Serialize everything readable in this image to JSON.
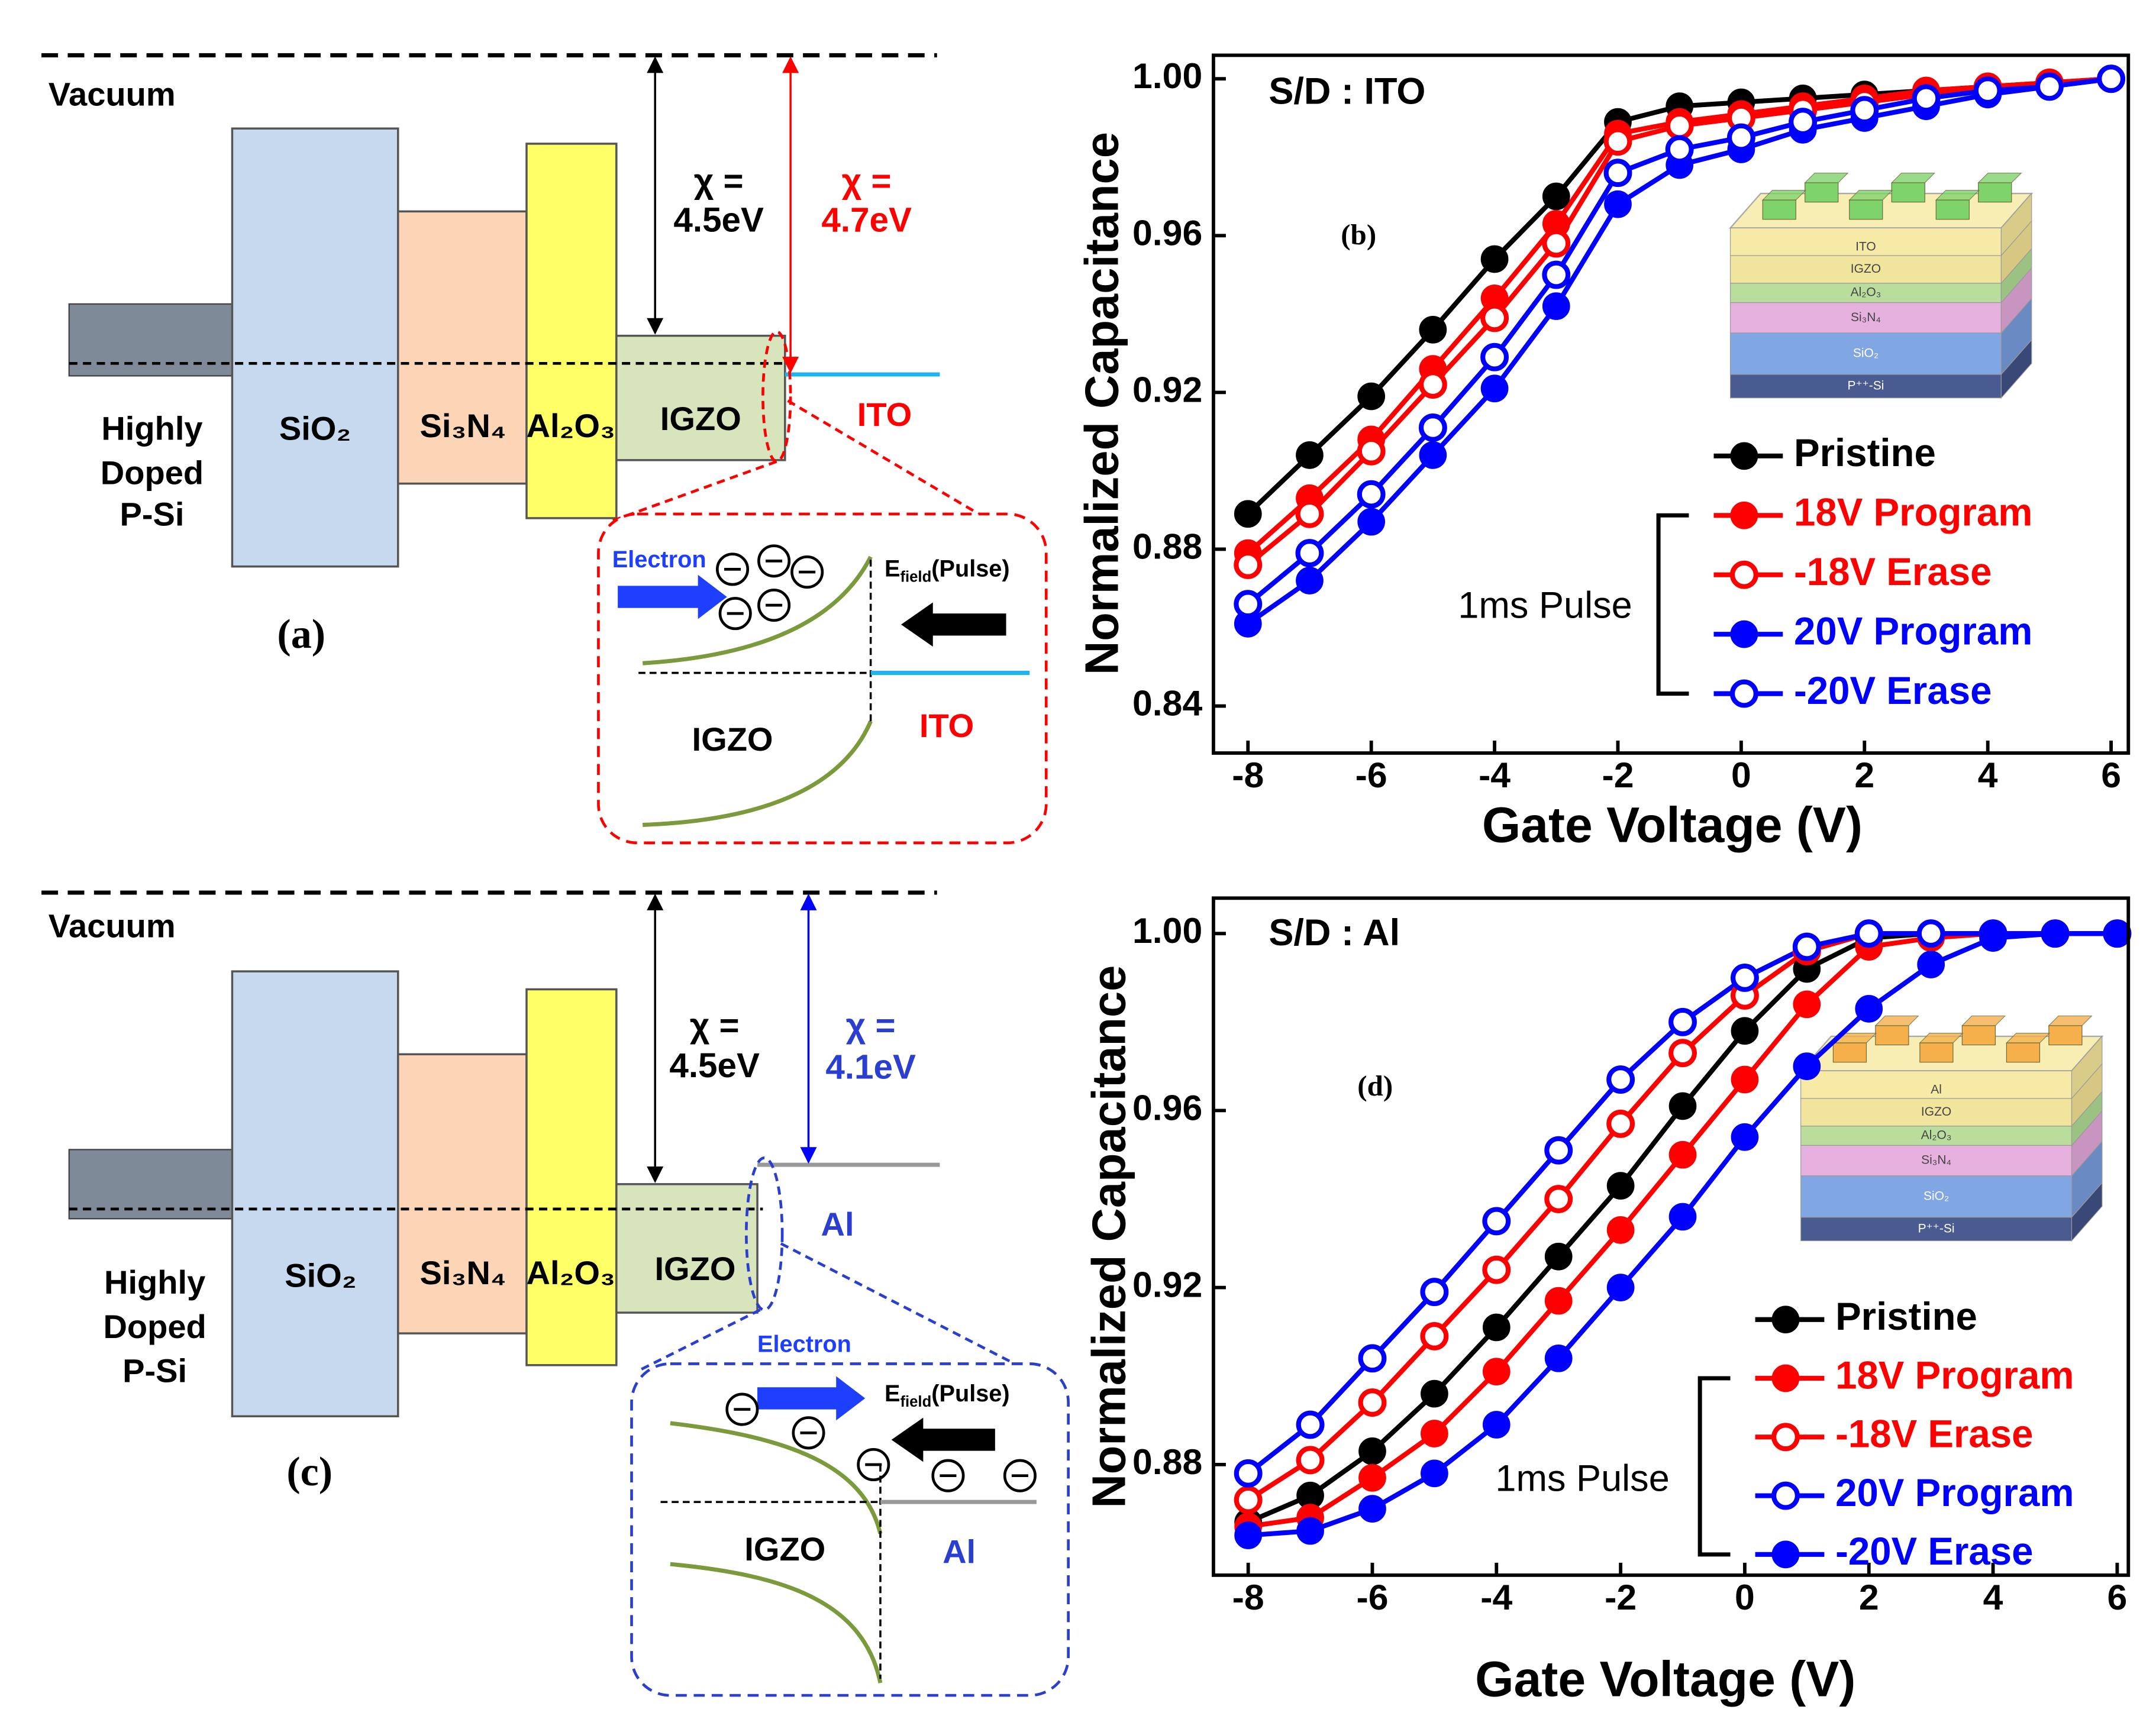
{
  "chart_data": [
    {
      "type": "line",
      "annotation": "S/D : ITO",
      "panel_label": "(b)",
      "x_label": "Gate Voltage (V)",
      "y_label": "Normalized Capacitance",
      "x": [
        -8,
        -7,
        -6,
        -5,
        -4,
        -3,
        -2,
        -1,
        0,
        1,
        2,
        3,
        4,
        5,
        6
      ],
      "series": [
        {
          "name": "Pristine",
          "color": "#000000",
          "marker": "filled",
          "values": [
            0.889,
            0.904,
            0.919,
            0.936,
            0.954,
            0.97,
            0.989,
            0.993,
            0.994,
            0.995,
            0.996,
            0.997,
            0.998,
            0.999,
            1.0
          ]
        },
        {
          "name": "18V Program",
          "color": "#ff0000",
          "marker": "filled",
          "values": [
            0.879,
            0.893,
            0.908,
            0.926,
            0.944,
            0.963,
            0.986,
            0.989,
            0.991,
            0.993,
            0.995,
            0.997,
            0.998,
            0.999,
            1.0
          ]
        },
        {
          "name": "-18V Erase",
          "color": "#ff0000",
          "marker": "open",
          "values": [
            0.876,
            0.889,
            0.905,
            0.922,
            0.939,
            0.958,
            0.984,
            0.988,
            0.99,
            0.992,
            0.994,
            0.996,
            0.998,
            0.999,
            1.0
          ]
        },
        {
          "name": "20V Program",
          "color": "#0000ff",
          "marker": "filled",
          "values": [
            0.861,
            0.872,
            0.887,
            0.904,
            0.921,
            0.942,
            0.968,
            0.978,
            0.982,
            0.987,
            0.99,
            0.993,
            0.996,
            0.998,
            1.0
          ]
        },
        {
          "name": "-20V Erase",
          "color": "#0000ff",
          "marker": "open",
          "values": [
            0.866,
            0.879,
            0.894,
            0.911,
            0.929,
            0.95,
            0.976,
            0.982,
            0.985,
            0.989,
            0.992,
            0.995,
            0.997,
            0.998,
            1.0
          ]
        }
      ],
      "legend_group_label": "1ms Pulse",
      "inset_layers": [
        "ITO",
        "IGZO",
        "Al₂O₃",
        "Si₃N₄",
        "SiO₂",
        "P⁺⁺-Si"
      ],
      "inset_electrode_color": "#7fd36b",
      "xlim": [
        -8.56,
        6.28
      ],
      "xticks": [
        -8,
        -6,
        -4,
        -2,
        0,
        2,
        4,
        6
      ],
      "ylim": [
        0.828,
        1.006
      ],
      "yticks": [
        0.84,
        0.88,
        0.92,
        0.96,
        {
          "value": 1.0,
          "label": "1.00"
        }
      ]
    },
    {
      "type": "line",
      "annotation": "S/D : Al",
      "panel_label": "(d)",
      "x_label": "Gate Voltage (V)",
      "y_label": "Normalized Capacitance",
      "x": [
        -8,
        -7,
        -6,
        -5,
        -4,
        -3,
        -2,
        -1,
        0,
        1,
        2,
        3,
        4,
        5,
        6
      ],
      "series": [
        {
          "name": "Pristine",
          "color": "#000000",
          "marker": "filled",
          "values": [
            0.867,
            0.873,
            0.883,
            0.896,
            0.911,
            0.927,
            0.943,
            0.961,
            0.978,
            0.992,
            0.999,
            1.0,
            1.0,
            1.0,
            1.0
          ]
        },
        {
          "name": "18V Program",
          "color": "#ff0000",
          "marker": "filled",
          "values": [
            0.866,
            0.868,
            0.877,
            0.887,
            0.901,
            0.917,
            0.933,
            0.95,
            0.967,
            0.984,
            0.997,
            0.999,
            1.0,
            1.0,
            1.0
          ]
        },
        {
          "name": "-18V Erase",
          "color": "#ff0000",
          "marker": "open",
          "values": [
            0.872,
            0.881,
            0.894,
            0.909,
            0.924,
            0.94,
            0.957,
            0.973,
            0.986,
            0.996,
            1.0,
            1.0,
            1.0,
            1.0,
            1.0
          ]
        },
        {
          "name": "20V Program",
          "color": "#0000ff",
          "marker": "open",
          "values": [
            0.878,
            0.889,
            0.904,
            0.919,
            0.935,
            0.951,
            0.967,
            0.98,
            0.99,
            0.997,
            1.0,
            1.0,
            1.0,
            1.0,
            1.0
          ]
        },
        {
          "name": "-20V Erase",
          "color": "#0000ff",
          "marker": "filled",
          "values": [
            0.864,
            0.865,
            0.87,
            0.878,
            0.889,
            0.904,
            0.92,
            0.936,
            0.954,
            0.97,
            0.983,
            0.993,
            0.999,
            1.0,
            1.0
          ]
        }
      ],
      "legend_group_label": "1ms Pulse",
      "inset_layers": [
        "Al",
        "IGZO",
        "Al₂O₃",
        "Si₃N₄",
        "SiO₂",
        "P⁺⁺-Si"
      ],
      "inset_electrode_color": "#f5b04c",
      "xlim": [
        -8.56,
        6.18
      ],
      "xticks": [
        -8,
        -6,
        -4,
        -2,
        0,
        2,
        4,
        6
      ],
      "ylim": [
        0.855,
        1.008
      ],
      "yticks": [
        0.88,
        0.92,
        0.96,
        {
          "value": 1.0,
          "label": "1.00"
        }
      ]
    }
  ],
  "diagrams": [
    {
      "label": "(a)",
      "vacuum": "Vacuum",
      "substrate": [
        "Highly",
        "Doped",
        "P-Si"
      ],
      "layers": [
        "SiO₂",
        "Si₃N₄",
        "Al₂O₃",
        "IGZO"
      ],
      "electrode": "ITO",
      "chi_left": [
        "χ =",
        "4.5eV"
      ],
      "chi_right": [
        "χ =",
        "4.7eV"
      ],
      "inset": {
        "electron": "Electron",
        "field": [
          "E",
          "field",
          "(Pulse)"
        ],
        "left": "IGZO",
        "right": "ITO"
      }
    },
    {
      "label": "(c)",
      "vacuum": "Vacuum",
      "substrate": [
        "Highly",
        "Doped",
        "P-Si"
      ],
      "layers": [
        "SiO₂",
        "Si₃N₄",
        "Al₂O₃",
        "IGZO"
      ],
      "electrode": "Al",
      "chi_left": [
        "χ =",
        "4.5eV"
      ],
      "chi_right": [
        "χ =",
        "4.1eV"
      ],
      "inset": {
        "electron": "Electron",
        "field": [
          "E",
          "field",
          "(Pulse)"
        ],
        "left": "IGZO",
        "right": "Al"
      }
    }
  ]
}
